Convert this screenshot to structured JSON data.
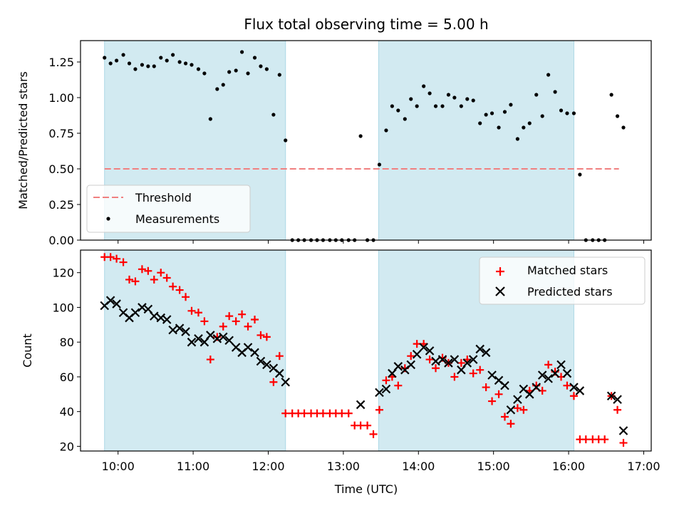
{
  "chart_data": {
    "type": "scatter",
    "title": "Flux total observing time = 5.00 h",
    "xlabel": "Time (UTC)",
    "x_ticks": [
      "10:00",
      "11:00",
      "12:00",
      "13:00",
      "14:00",
      "15:00",
      "16:00",
      "17:00"
    ],
    "x_tick_hours": [
      10,
      11,
      12,
      13,
      14,
      15,
      16,
      17
    ],
    "xlim_hours": [
      9.5,
      17.1
    ],
    "shaded_intervals_hours": [
      [
        9.82,
        12.23
      ],
      [
        13.47,
        16.07
      ]
    ],
    "colors": {
      "shade": "#add8e6",
      "threshold": "#f08080",
      "measurements": "#000000",
      "matched": "#ff0000",
      "predicted": "#000000"
    },
    "panels": [
      {
        "ylabel": "Matched/Predicted stars",
        "ylim": [
          0,
          1.4
        ],
        "y_ticks": [
          0.0,
          0.25,
          0.5,
          0.75,
          1.0,
          1.25
        ],
        "y_tick_labels": [
          "0.00",
          "0.25",
          "0.50",
          "0.75",
          "1.00",
          "1.25"
        ],
        "threshold": {
          "name": "Threshold",
          "y": 0.5,
          "x_range_hours": [
            9.82,
            16.67
          ]
        },
        "legend": {
          "position": "lower-left",
          "entries": [
            "Threshold",
            "Measurements"
          ]
        },
        "series": [
          {
            "name": "Measurements",
            "x_hours": [
              9.82,
              9.9,
              9.98,
              10.07,
              10.15,
              10.23,
              10.32,
              10.4,
              10.48,
              10.57,
              10.65,
              10.73,
              10.82,
              10.9,
              10.98,
              11.07,
              11.15,
              11.23,
              11.32,
              11.4,
              11.48,
              11.57,
              11.65,
              11.73,
              11.82,
              11.9,
              11.98,
              12.07,
              12.15,
              12.23,
              12.32,
              12.4,
              12.48,
              12.57,
              12.65,
              12.73,
              12.82,
              12.9,
              12.98,
              13.07,
              13.15,
              13.23,
              13.32,
              13.4,
              13.48,
              13.57,
              13.65,
              13.73,
              13.82,
              13.9,
              13.98,
              14.07,
              14.15,
              14.23,
              14.32,
              14.4,
              14.48,
              14.57,
              14.65,
              14.73,
              14.82,
              14.9,
              14.98,
              15.07,
              15.15,
              15.23,
              15.32,
              15.4,
              15.48,
              15.57,
              15.65,
              15.73,
              15.82,
              15.9,
              15.98,
              16.07,
              16.15,
              16.23,
              16.32,
              16.4,
              16.48,
              16.57,
              16.65,
              16.73
            ],
            "y": [
              1.28,
              1.24,
              1.26,
              1.3,
              1.24,
              1.2,
              1.23,
              1.22,
              1.22,
              1.28,
              1.26,
              1.3,
              1.25,
              1.24,
              1.23,
              1.2,
              1.17,
              0.85,
              1.06,
              1.09,
              1.18,
              1.19,
              1.32,
              1.17,
              1.28,
              1.22,
              1.2,
              0.88,
              1.16,
              0.7,
              0,
              0,
              0,
              0,
              0,
              0,
              0,
              0,
              0,
              0,
              0,
              0.73,
              0,
              0,
              0.53,
              0.77,
              0.94,
              0.91,
              0.85,
              0.99,
              0.94,
              1.08,
              1.03,
              0.94,
              0.94,
              1.02,
              1.0,
              0.94,
              0.99,
              0.98,
              0.82,
              0.88,
              0.89,
              0.79,
              0.9,
              0.95,
              0.71,
              0.79,
              0.82,
              1.02,
              0.87,
              1.16,
              1.04,
              0.91,
              0.89,
              0.89,
              0.46,
              0,
              0,
              0,
              0,
              1.02,
              0.87,
              0.79
            ]
          }
        ]
      },
      {
        "ylabel": "Count",
        "ylim": [
          17.3,
          133
        ],
        "y_ticks": [
          20,
          40,
          60,
          80,
          100,
          120
        ],
        "y_tick_labels": [
          "20",
          "40",
          "60",
          "80",
          "100",
          "120"
        ],
        "legend": {
          "position": "upper-right",
          "entries": [
            "Matched stars",
            "Predicted stars"
          ]
        },
        "series": [
          {
            "name": "Matched stars",
            "marker": "plus",
            "x_hours": [
              9.82,
              9.9,
              9.98,
              10.07,
              10.15,
              10.23,
              10.32,
              10.4,
              10.48,
              10.57,
              10.65,
              10.73,
              10.82,
              10.9,
              10.98,
              11.07,
              11.15,
              11.23,
              11.32,
              11.4,
              11.48,
              11.57,
              11.65,
              11.73,
              11.82,
              11.9,
              11.98,
              12.07,
              12.15,
              12.23,
              12.32,
              12.4,
              12.48,
              12.57,
              12.65,
              12.73,
              12.82,
              12.9,
              12.98,
              13.07,
              13.15,
              13.23,
              13.32,
              13.4,
              13.48,
              13.57,
              13.65,
              13.73,
              13.82,
              13.9,
              13.98,
              14.07,
              14.15,
              14.23,
              14.32,
              14.4,
              14.48,
              14.57,
              14.65,
              14.73,
              14.82,
              14.9,
              14.98,
              15.07,
              15.15,
              15.23,
              15.32,
              15.4,
              15.48,
              15.57,
              15.65,
              15.73,
              15.82,
              15.9,
              15.98,
              16.07,
              16.15,
              16.23,
              16.32,
              16.4,
              16.48,
              16.57,
              16.65,
              16.73
            ],
            "y": [
              129,
              129,
              128,
              126,
              116,
              115,
              122,
              121,
              116,
              120,
              117,
              112,
              110,
              106,
              98,
              97,
              92,
              70,
              83,
              89,
              95,
              92,
              96,
              89,
              93,
              84,
              83,
              57,
              72,
              39,
              39,
              39,
              39,
              39,
              39,
              39,
              39,
              39,
              39,
              39,
              32,
              32,
              32,
              27,
              41,
              58,
              60,
              55,
              65,
              72,
              79,
              79,
              70,
              65,
              71,
              68,
              60,
              68,
              70,
              62,
              64,
              54,
              46,
              50,
              37,
              33,
              42,
              41,
              52,
              55,
              52,
              67,
              63,
              60,
              55,
              49,
              24,
              24,
              24,
              24,
              24,
              49,
              41,
              22
            ]
          },
          {
            "name": "Predicted stars",
            "marker": "x",
            "x_hours": [
              9.82,
              9.9,
              9.98,
              10.07,
              10.15,
              10.23,
              10.32,
              10.4,
              10.48,
              10.57,
              10.65,
              10.73,
              10.82,
              10.9,
              10.98,
              11.07,
              11.15,
              11.23,
              11.32,
              11.4,
              11.48,
              11.57,
              11.65,
              11.73,
              11.82,
              11.9,
              11.98,
              12.07,
              12.15,
              12.23,
              13.23,
              13.48,
              13.57,
              13.65,
              13.73,
              13.82,
              13.9,
              13.98,
              14.07,
              14.15,
              14.23,
              14.32,
              14.4,
              14.48,
              14.57,
              14.65,
              14.73,
              14.82,
              14.9,
              14.98,
              15.07,
              15.15,
              15.23,
              15.32,
              15.4,
              15.48,
              15.57,
              15.65,
              15.73,
              15.82,
              15.9,
              15.98,
              16.07,
              16.15,
              16.57,
              16.65,
              16.73
            ],
            "y": [
              101,
              104,
              102,
              97,
              94,
              97,
              100,
              99,
              95,
              94,
              93,
              87,
              88,
              86,
              80,
              82,
              80,
              84,
              82,
              83,
              81,
              77,
              74,
              77,
              74,
              69,
              67,
              65,
              62,
              57,
              44,
              51,
              53,
              62,
              66,
              64,
              67,
              73,
              77,
              75,
              69,
              70,
              68,
              70,
              64,
              68,
              70,
              76,
              74,
              61,
              58,
              55,
              41,
              47,
              53,
              50,
              54,
              61,
              59,
              62,
              67,
              62,
              54,
              52,
              49,
              47,
              29
            ]
          }
        ]
      }
    ]
  }
}
